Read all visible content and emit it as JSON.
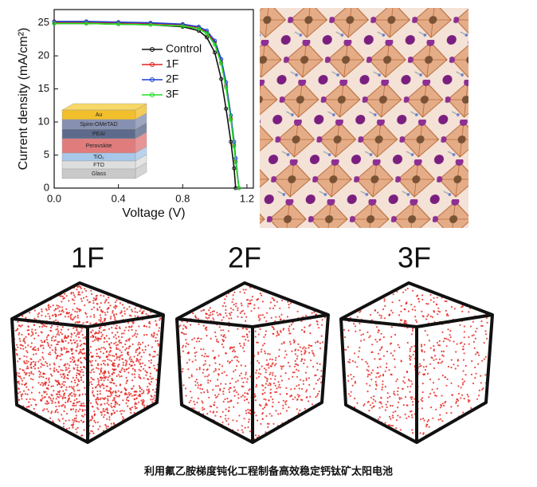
{
  "chart_data": {
    "type": "line",
    "xlabel": "Voltage (V)",
    "ylabel": "Current density (mA/cm²)",
    "x": [
      0,
      0.2,
      0.4,
      0.6,
      0.8,
      0.9,
      0.95,
      1.0,
      1.04,
      1.07,
      1.1,
      1.12,
      1.13,
      1.15
    ],
    "series": [
      {
        "name": "Control",
        "color": "#111111",
        "values": [
          24.9,
          24.9,
          24.8,
          24.7,
          24.4,
          23.8,
          22.8,
          20.5,
          16.5,
          12,
          7,
          3,
          0,
          null
        ]
      },
      {
        "name": "1F",
        "color": "#e02020",
        "values": [
          25.1,
          25.1,
          25.0,
          24.9,
          24.7,
          24.3,
          23.6,
          22,
          19,
          15.5,
          10.5,
          6.5,
          4,
          0
        ]
      },
      {
        "name": "2F",
        "color": "#1f3fd0",
        "values": [
          25.2,
          25.2,
          25.1,
          25.0,
          24.8,
          24.4,
          23.8,
          22.3,
          19.5,
          16,
          11,
          7,
          4.5,
          0
        ]
      },
      {
        "name": "3F",
        "color": "#22dd22",
        "values": [
          24.9,
          24.9,
          24.8,
          24.7,
          24.5,
          24.1,
          23.4,
          21.7,
          18.8,
          15.2,
          10.3,
          6.3,
          3.9,
          0
        ]
      }
    ],
    "xlim": [
      0,
      1.24
    ],
    "xticks": [
      {
        "value": 0,
        "label": "0.0"
      },
      0.4,
      0.8,
      1.2
    ],
    "ylim": [
      0,
      27
    ],
    "yticks": [
      0,
      5,
      10,
      15,
      20,
      25
    ]
  },
  "device_stack": [
    "Au",
    "Spiro-OMeTAD",
    "PEAI",
    "Perovskite",
    "TiO₂",
    "FTO",
    "Glass"
  ],
  "cubes": [
    "1F",
    "2F",
    "3F"
  ],
  "caption": "利用氟乙胺梯度钝化工程制备高效稳定钙钛矿太阳电池"
}
